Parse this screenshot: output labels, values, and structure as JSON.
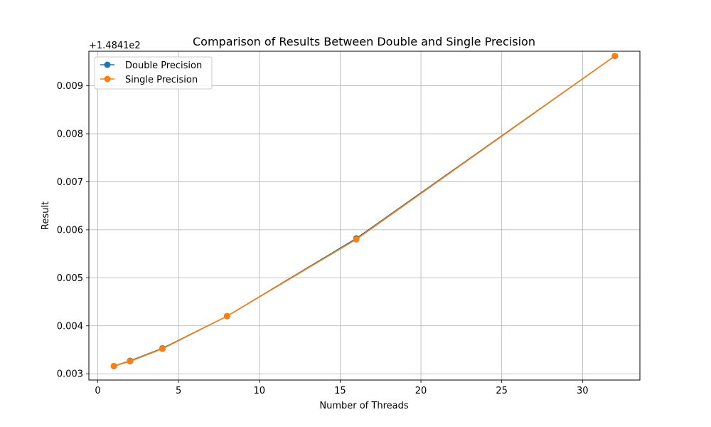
{
  "chart_data": {
    "type": "line",
    "title": "Comparison of Results Between Double and Single Precision",
    "xlabel": "Number of Threads",
    "ylabel": "Result",
    "y_offset_label": "+1.4841e2",
    "xlim": [
      -0.55,
      33.55
    ],
    "ylim": [
      0.00287,
      0.00972
    ],
    "xticks": [
      0,
      5,
      10,
      15,
      20,
      25,
      30
    ],
    "xtick_labels": [
      "0",
      "5",
      "10",
      "15",
      "20",
      "25",
      "30"
    ],
    "yticks": [
      0.003,
      0.004,
      0.005,
      0.006,
      0.007,
      0.008,
      0.009
    ],
    "ytick_labels": [
      "0.003",
      "0.004",
      "0.005",
      "0.006",
      "0.007",
      "0.008",
      "0.009"
    ],
    "grid": true,
    "legend_position": "top-left",
    "x": [
      1,
      2,
      4,
      8,
      16,
      32
    ],
    "series": [
      {
        "name": "Double Precision",
        "color": "#1f77b4",
        "marker": "circle",
        "values": [
          0.00316,
          0.00327,
          0.00353,
          0.0042,
          0.00582,
          0.00962
        ]
      },
      {
        "name": "Single Precision",
        "color": "#ff7f0e",
        "marker": "circle",
        "values": [
          0.00316,
          0.00326,
          0.00352,
          0.0042,
          0.0058,
          0.00962
        ]
      }
    ]
  }
}
